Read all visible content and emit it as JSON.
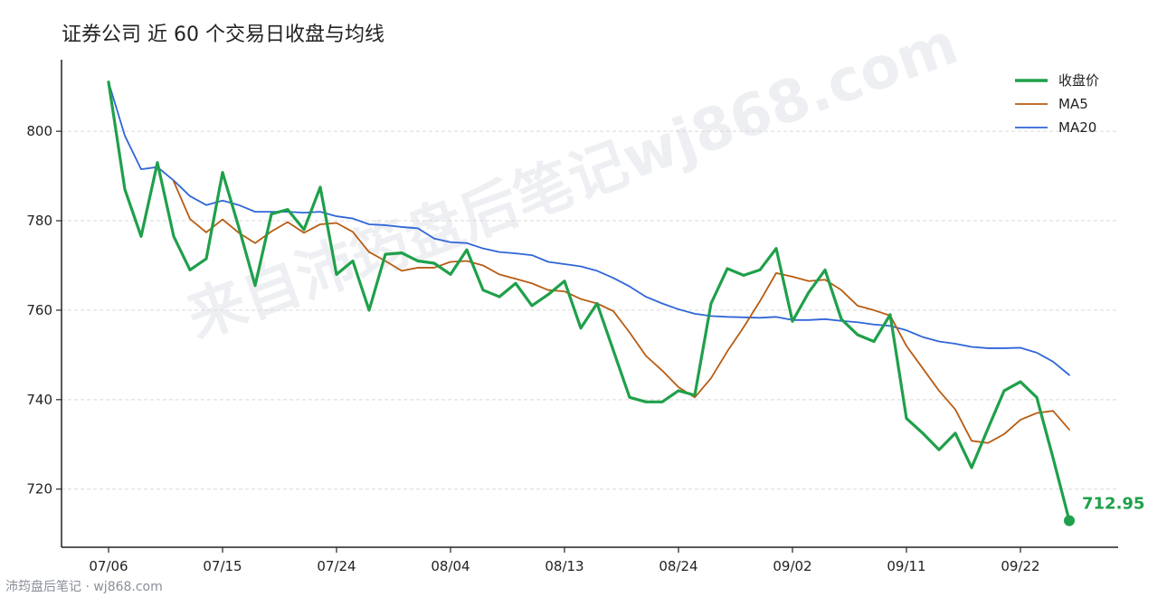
{
  "title": "证券公司 近 60 个交易日收盘与均线",
  "watermark": "来自沛筠盘后笔记wj868.com",
  "footer": "沛筠盘后笔记 · wj868.com",
  "colors": {
    "close": "#1fa04a",
    "ma5": "#b85c12",
    "ma20": "#2f66d8",
    "grid": "#d9d9d9",
    "axis": "#222222"
  },
  "chart_data": {
    "type": "line",
    "title": "证券公司 近 60 个交易日收盘与均线",
    "ylim": [
      707,
      816
    ],
    "yticks": [
      720,
      740,
      760,
      780,
      800
    ],
    "xtick_labels": [
      {
        "index": 0,
        "label": "07/06"
      },
      {
        "index": 7,
        "label": "07/15"
      },
      {
        "index": 14,
        "label": "07/24"
      },
      {
        "index": 21,
        "label": "08/04"
      },
      {
        "index": 28,
        "label": "08/13"
      },
      {
        "index": 35,
        "label": "08/24"
      },
      {
        "index": 42,
        "label": "09/02"
      },
      {
        "index": 49,
        "label": "09/11"
      },
      {
        "index": 56,
        "label": "09/22"
      }
    ],
    "grid": "horizontal dashed",
    "legend_position": "top-right",
    "series": [
      {
        "name": "收盘价",
        "values": [
          811.0,
          787.0,
          776.5,
          793.0,
          776.5,
          769.0,
          771.5,
          790.8,
          778.5,
          765.5,
          781.5,
          782.5,
          778.0,
          787.5,
          768.0,
          771.0,
          760.0,
          772.5,
          772.8,
          771.0,
          770.5,
          768.0,
          773.5,
          764.5,
          763.0,
          766.0,
          761.0,
          763.5,
          766.5,
          756.0,
          761.5,
          751.0,
          740.5,
          739.5,
          739.5,
          742.0,
          741.0,
          761.5,
          769.3,
          767.8,
          769.0,
          773.8,
          757.5,
          764.0,
          769.0,
          758.0,
          754.5,
          753.0,
          759.0,
          735.8,
          732.5,
          728.8,
          732.5,
          724.8,
          733.5,
          742.0,
          744.0,
          740.5,
          727.0,
          712.95
        ]
      },
      {
        "name": "MA5",
        "values": [
          811.0,
          null,
          null,
          null,
          788.8,
          780.4,
          777.4,
          780.3,
          777.3,
          775.0,
          777.6,
          779.7,
          777.3,
          779.2,
          779.5,
          777.5,
          773.0,
          771.0,
          768.8,
          769.5,
          769.5,
          770.8,
          771.0,
          770.0,
          768.0,
          767.0,
          766.0,
          764.5,
          764.2,
          762.5,
          761.5,
          759.8,
          755.0,
          749.8,
          746.5,
          742.8,
          740.5,
          744.8,
          750.8,
          756.2,
          762.0,
          768.3,
          767.5,
          766.5,
          766.8,
          764.5,
          761.0,
          760.0,
          758.8,
          752.0,
          747.0,
          742.0,
          737.8,
          730.8,
          730.3,
          732.3,
          735.5,
          737.0,
          737.5,
          733.3
        ]
      },
      {
        "name": "MA20",
        "values": [
          811.0,
          799.0,
          791.5,
          792.0,
          789.0,
          785.5,
          783.5,
          784.5,
          783.5,
          782.0,
          782.0,
          782.0,
          781.8,
          782.0,
          781.0,
          780.5,
          779.2,
          779.0,
          778.6,
          778.3,
          776.0,
          775.2,
          775.0,
          773.8,
          773.0,
          772.7,
          772.3,
          770.8,
          770.3,
          769.8,
          768.8,
          767.2,
          765.3,
          763.0,
          761.5,
          760.2,
          759.2,
          758.7,
          758.5,
          758.4,
          758.3,
          758.5,
          757.8,
          757.8,
          758.0,
          757.6,
          757.3,
          756.8,
          756.5,
          755.5,
          754.0,
          753.0,
          752.5,
          751.8,
          751.5,
          751.5,
          751.6,
          750.5,
          748.5,
          745.5
        ]
      }
    ],
    "end_label": "712.95"
  }
}
